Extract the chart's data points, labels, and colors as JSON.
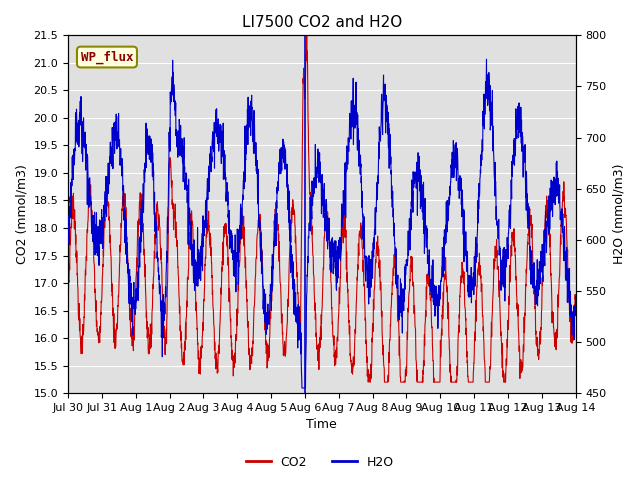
{
  "title": "LI7500 CO2 and H2O",
  "xlabel": "Time",
  "ylabel_left": "CO2 (mmol/m3)",
  "ylabel_right": "H2O (mmol/m3)",
  "annotation": "WP_flux",
  "co2_ylim": [
    15.0,
    21.5
  ],
  "h2o_ylim": [
    450,
    800
  ],
  "co2_color": "#cc0000",
  "h2o_color": "#0000cc",
  "bg_color": "#e0e0e0",
  "title_fontsize": 11,
  "axis_fontsize": 9,
  "tick_fontsize": 8,
  "legend_fontsize": 9,
  "annotation_fontsize": 9,
  "xtick_labels": [
    "Jul 30",
    "Jul 31",
    "Aug 1",
    "Aug 2",
    "Aug 3",
    "Aug 4",
    "Aug 5",
    "Aug 6",
    "Aug 7",
    "Aug 8",
    "Aug 9",
    "Aug 10",
    "Aug 11",
    "Aug 12",
    "Aug 13",
    "Aug 14"
  ],
  "n_points": 2160,
  "seed": 7
}
